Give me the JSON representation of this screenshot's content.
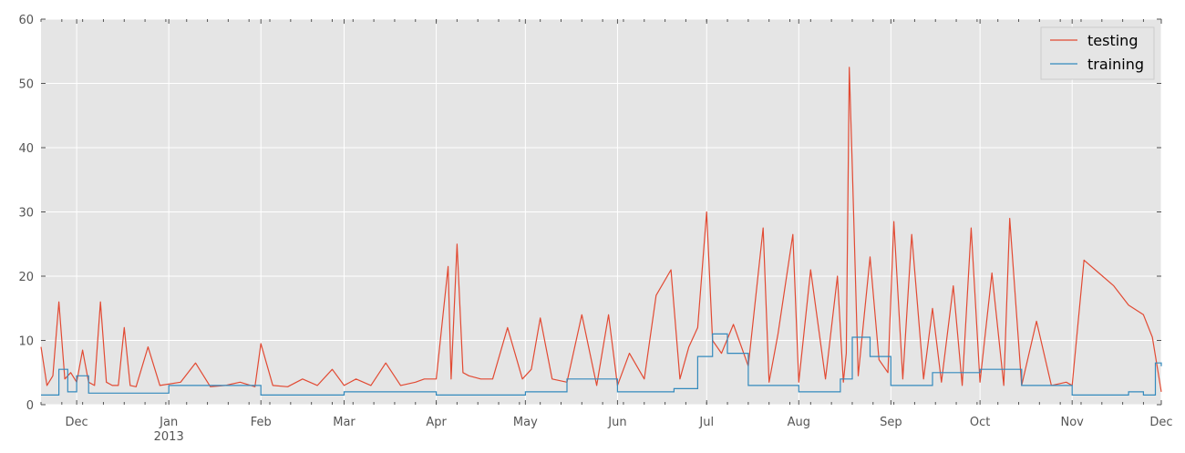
{
  "chart_data": {
    "type": "line",
    "title": "",
    "xlabel": "",
    "ylabel": "",
    "ylim": [
      0,
      60
    ],
    "xlim": [
      "2012-11-19",
      "2013-12-01"
    ],
    "grid": true,
    "legend_position": "top-right",
    "y_ticks": [
      0,
      10,
      20,
      30,
      40,
      50,
      60
    ],
    "x_ticks": [
      {
        "label": "Dec",
        "sublabel": "",
        "date": "2012-12-01"
      },
      {
        "label": "Jan",
        "sublabel": "2013",
        "date": "2013-01-01"
      },
      {
        "label": "Feb",
        "sublabel": "",
        "date": "2013-02-01"
      },
      {
        "label": "Mar",
        "sublabel": "",
        "date": "2013-03-01"
      },
      {
        "label": "Apr",
        "sublabel": "",
        "date": "2013-04-01"
      },
      {
        "label": "May",
        "sublabel": "",
        "date": "2013-05-01"
      },
      {
        "label": "Jun",
        "sublabel": "",
        "date": "2013-06-01"
      },
      {
        "label": "Jul",
        "sublabel": "",
        "date": "2013-07-01"
      },
      {
        "label": "Aug",
        "sublabel": "",
        "date": "2013-08-01"
      },
      {
        "label": "Sep",
        "sublabel": "",
        "date": "2013-09-01"
      },
      {
        "label": "Oct",
        "sublabel": "",
        "date": "2013-10-01"
      },
      {
        "label": "Nov",
        "sublabel": "",
        "date": "2013-11-01"
      },
      {
        "label": "Dec",
        "sublabel": "",
        "date": "2013-12-01"
      }
    ],
    "colors": {
      "testing": "#e24a33",
      "training": "#348abd",
      "plot_background": "#e5e5e5",
      "grid": "#ffffff"
    },
    "series": [
      {
        "name": "testing",
        "x": [
          "2012-11-19",
          "2012-11-21",
          "2012-11-23",
          "2012-11-25",
          "2012-11-27",
          "2012-11-29",
          "2012-12-01",
          "2012-12-03",
          "2012-12-05",
          "2012-12-07",
          "2012-12-09",
          "2012-12-11",
          "2012-12-13",
          "2012-12-15",
          "2012-12-17",
          "2012-12-19",
          "2012-12-21",
          "2012-12-25",
          "2012-12-29",
          "2013-01-05",
          "2013-01-10",
          "2013-01-15",
          "2013-01-20",
          "2013-01-25",
          "2013-01-30",
          "2013-02-01",
          "2013-02-05",
          "2013-02-10",
          "2013-02-15",
          "2013-02-20",
          "2013-02-25",
          "2013-03-01",
          "2013-03-05",
          "2013-03-10",
          "2013-03-15",
          "2013-03-20",
          "2013-03-25",
          "2013-03-28",
          "2013-04-01",
          "2013-04-05",
          "2013-04-06",
          "2013-04-08",
          "2013-04-10",
          "2013-04-12",
          "2013-04-16",
          "2013-04-20",
          "2013-04-25",
          "2013-04-30",
          "2013-05-03",
          "2013-05-06",
          "2013-05-10",
          "2013-05-15",
          "2013-05-20",
          "2013-05-25",
          "2013-05-29",
          "2013-06-01",
          "2013-06-05",
          "2013-06-10",
          "2013-06-14",
          "2013-06-19",
          "2013-06-22",
          "2013-06-25",
          "2013-06-28",
          "2013-07-01",
          "2013-07-03",
          "2013-07-06",
          "2013-07-10",
          "2013-07-15",
          "2013-07-20",
          "2013-07-22",
          "2013-07-25",
          "2013-07-30",
          "2013-08-01",
          "2013-08-05",
          "2013-08-10",
          "2013-08-14",
          "2013-08-16",
          "2013-08-17",
          "2013-08-18",
          "2013-08-19",
          "2013-08-21",
          "2013-08-25",
          "2013-08-28",
          "2013-08-31",
          "2013-09-02",
          "2013-09-05",
          "2013-09-08",
          "2013-09-12",
          "2013-09-15",
          "2013-09-18",
          "2013-09-22",
          "2013-09-25",
          "2013-09-28",
          "2013-10-01",
          "2013-10-05",
          "2013-10-09",
          "2013-10-11",
          "2013-10-15",
          "2013-10-20",
          "2013-10-25",
          "2013-10-30",
          "2013-11-01",
          "2013-11-05",
          "2013-11-10",
          "2013-11-15",
          "2013-11-20",
          "2013-11-25",
          "2013-11-28",
          "2013-12-01"
        ],
        "values": [
          9.0,
          3.0,
          4.5,
          16.0,
          4.0,
          5.0,
          3.5,
          8.5,
          3.5,
          3.0,
          16.0,
          3.5,
          3.0,
          3.0,
          12.0,
          3.0,
          2.8,
          9.0,
          3.0,
          3.5,
          6.5,
          2.8,
          3.0,
          3.5,
          2.8,
          9.5,
          3.0,
          2.8,
          4.0,
          3.0,
          5.5,
          3.0,
          4.0,
          3.0,
          6.5,
          3.0,
          3.5,
          4.0,
          4.0,
          21.5,
          4.0,
          25.0,
          5.0,
          4.5,
          4.0,
          4.0,
          12.0,
          4.0,
          5.5,
          13.5,
          4.0,
          3.5,
          14.0,
          3.0,
          14.0,
          3.0,
          8.0,
          4.0,
          17.0,
          21.0,
          4.0,
          9.0,
          12.0,
          30.0,
          10.0,
          8.0,
          12.5,
          6.0,
          27.5,
          3.5,
          11.0,
          26.5,
          3.5,
          21.0,
          4.0,
          20.0,
          3.5,
          8.0,
          52.5,
          37.0,
          4.5,
          23.0,
          7.0,
          5.0,
          28.5,
          4.0,
          26.5,
          4.0,
          15.0,
          3.5,
          18.5,
          3.0,
          27.5,
          3.5,
          20.5,
          3.0,
          29.0,
          3.0,
          13.0,
          3.0,
          3.5,
          3.0,
          22.5,
          20.5,
          18.5,
          15.5,
          14.0,
          10.5,
          2.0
        ]
      },
      {
        "name": "training",
        "x": [
          "2012-11-19",
          "2012-11-25",
          "2012-11-28",
          "2012-12-01",
          "2012-12-05",
          "2013-01-01",
          "2013-02-01",
          "2013-03-01",
          "2013-04-01",
          "2013-05-01",
          "2013-05-15",
          "2013-06-01",
          "2013-06-20",
          "2013-06-28",
          "2013-07-03",
          "2013-07-08",
          "2013-07-15",
          "2013-08-01",
          "2013-08-15",
          "2013-08-19",
          "2013-08-25",
          "2013-09-01",
          "2013-09-15",
          "2013-10-01",
          "2013-10-15",
          "2013-11-01",
          "2013-11-20",
          "2013-11-25",
          "2013-11-29",
          "2013-12-01"
        ],
        "values": [
          1.5,
          5.5,
          2.0,
          4.5,
          1.8,
          3.0,
          1.5,
          2.0,
          1.5,
          2.0,
          4.0,
          2.0,
          2.5,
          7.5,
          11.0,
          8.0,
          3.0,
          2.0,
          4.0,
          10.5,
          7.5,
          3.0,
          5.0,
          5.5,
          3.0,
          1.5,
          2.0,
          1.5,
          6.5,
          6.0
        ]
      }
    ]
  }
}
